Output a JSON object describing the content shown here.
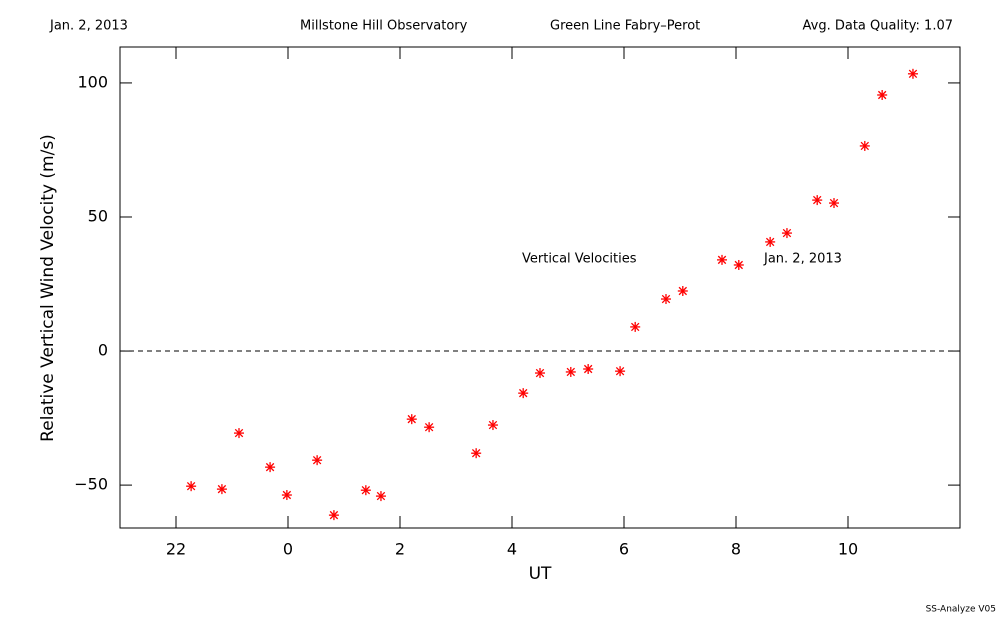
{
  "chart_data": {
    "type": "scatter",
    "header": [
      "Jan. 2, 2013",
      "Millstone Hill Observatory",
      "Green Line Fabry–Perot",
      "Avg. Data Quality: 1.07"
    ],
    "annotations": [
      "Vertical Velocities",
      "Jan. 2, 2013"
    ],
    "footer": "SS-Analyze V05",
    "xlabel": "UT",
    "ylabel": "Relative Vertical Wind Velocity (m/s)",
    "color": "#ff0000",
    "zero_line": 0,
    "xlim": [
      -3,
      12
    ],
    "xticks": [
      {
        "value": -2,
        "label": "22"
      },
      0,
      2,
      4,
      6,
      8,
      10
    ],
    "ylim": [
      -66,
      113.4
    ],
    "yticks": [
      {
        "value": -50,
        "label": "−50"
      },
      0,
      50,
      100
    ],
    "x": [
      -1.73,
      -1.18,
      -0.875,
      -0.32,
      -0.02,
      0.52,
      0.82,
      1.39,
      1.66,
      2.21,
      2.52,
      3.36,
      3.66,
      4.2,
      4.5,
      5.05,
      5.36,
      5.93,
      6.2,
      6.75,
      7.05,
      7.75,
      8.05,
      8.61,
      8.91,
      9.45,
      9.75,
      10.3,
      10.61,
      11.16
    ],
    "values": [
      -50.4,
      -51.5,
      -30.6,
      -43.3,
      -53.7,
      -40.7,
      -61.2,
      -51.9,
      -54.1,
      -25.4,
      -28.4,
      -38.1,
      -27.6,
      -15.7,
      -8.2,
      -7.8,
      -6.7,
      -7.5,
      9.0,
      19.4,
      22.4,
      34.0,
      32.1,
      40.7,
      44.0,
      56.3,
      55.2,
      76.5,
      95.5,
      103.4
    ]
  }
}
